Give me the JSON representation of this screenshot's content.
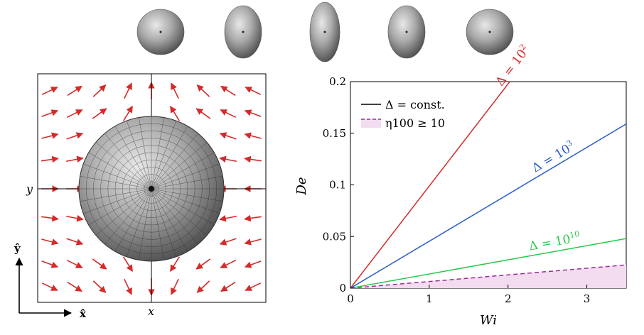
{
  "figure": {
    "flow_panel": {
      "y_label": "y",
      "x_label": "x",
      "unit_x_label": "x̂",
      "unit_y_label": "ŷ",
      "arrow_color": "#d62a2a",
      "sphere_color": "#7a7a7a"
    },
    "shape_sequence": {
      "count": 5,
      "note_shapes": [
        "sphere",
        "prolate",
        "elongated",
        "prolate",
        "sphere"
      ]
    }
  },
  "chart_data": {
    "type": "line",
    "xlabel": "Wi",
    "ylabel": "De",
    "xlim": [
      0,
      3.5
    ],
    "ylim": [
      0,
      0.2
    ],
    "x_ticks": [
      "0",
      "1",
      "2",
      "3"
    ],
    "y_ticks": [
      "0",
      "0.05",
      "0.1",
      "0.15",
      "0.2"
    ],
    "legend": {
      "placement": "top-left",
      "entries": [
        {
          "label": "Δ = const.",
          "style": "solid",
          "color": "#000000"
        },
        {
          "label": "η100 ≥ 10",
          "style": "dashed-fill",
          "color": "#9b2a9b",
          "fill": "#f3dcef"
        }
      ]
    },
    "series": [
      {
        "label_base": "Δ = 10",
        "label_exp": "2",
        "color": "#d62a2a",
        "style": "solid",
        "x": [
          0,
          3.5
        ],
        "y": [
          0,
          0.346
        ]
      },
      {
        "label_base": "Δ = 10",
        "label_exp": "3",
        "color": "#2a5cc8",
        "style": "solid",
        "x": [
          0,
          3.5
        ],
        "y": [
          0,
          0.159
        ]
      },
      {
        "label_base": "Δ = 10",
        "label_exp": "10",
        "color": "#2ac84a",
        "style": "solid",
        "x": [
          0,
          3.5
        ],
        "y": [
          0,
          0.048
        ]
      },
      {
        "label_base": "",
        "label_exp": "",
        "color": "#9b2a9b",
        "style": "dashed",
        "x": [
          0,
          3.5
        ],
        "y": [
          0,
          0.0225
        ]
      }
    ]
  }
}
